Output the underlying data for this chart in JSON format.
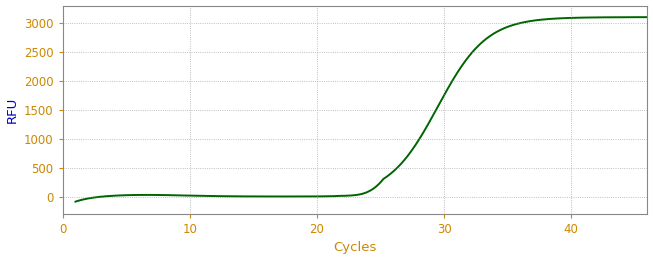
{
  "title": "",
  "xlabel": "Cycles",
  "ylabel": "RFU",
  "xlabel_color": "#cc8800",
  "ylabel_color": "#0000cc",
  "tick_label_color": "#cc8800",
  "line_color": "#006400",
  "background_color": "#ffffff",
  "grid_color": "#888888",
  "xlim": [
    0,
    46
  ],
  "ylim": [
    -300,
    3300
  ],
  "xticks": [
    0,
    10,
    20,
    30,
    40
  ],
  "yticks": [
    0,
    500,
    1000,
    1500,
    2000,
    2500,
    3000
  ],
  "figsize": [
    6.53,
    2.6
  ],
  "dpi": 100,
  "line_width": 1.4,
  "sigmoid_L": 3100,
  "sigmoid_k": 0.52,
  "sigmoid_x0": 29.5,
  "x_start": 1,
  "x_end": 46,
  "spine_color": "#888888"
}
